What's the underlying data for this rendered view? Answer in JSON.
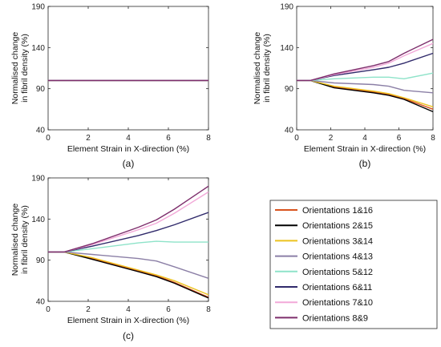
{
  "colors": {
    "1&16": "#d9531e",
    "2&15": "#000000",
    "3&14": "#ecc21f",
    "4&13": "#8b7fa6",
    "5&12": "#8ee3c9",
    "6&11": "#302a6b",
    "7&10": "#f2a9d8",
    "8&9": "#7d2e6c"
  },
  "legend": {
    "entries": [
      {
        "key": "1&16",
        "label": "Orientations 1&16"
      },
      {
        "key": "2&15",
        "label": "Orientations 2&15"
      },
      {
        "key": "3&14",
        "label": "Orientations 3&14"
      },
      {
        "key": "4&13",
        "label": "Orientations 4&13"
      },
      {
        "key": "5&12",
        "label": "Orientations 5&12"
      },
      {
        "key": "6&11",
        "label": "Orientations 6&11"
      },
      {
        "key": "7&10",
        "label": "Orientations 7&10"
      },
      {
        "key": "8&9",
        "label": "Orientations 8&9"
      }
    ]
  },
  "chart_data": [
    {
      "type": "line",
      "panel": "(a)",
      "xlabel": "Element Strain in X-direction (%)",
      "ylabel": "Normalised change in fibril density (%)",
      "ylabel_lines": [
        "Normalised change",
        "in fibril density (%)"
      ],
      "xlim": [
        0,
        8
      ],
      "ylim": [
        40,
        190
      ],
      "xticks": [
        0,
        2,
        4,
        6,
        8
      ],
      "yticks": [
        40,
        90,
        140,
        190
      ],
      "x": [
        0,
        0.8,
        2.2,
        4.5,
        5.4,
        6.3,
        8
      ],
      "series": [
        {
          "key": "1&16",
          "values": [
            100,
            100,
            100,
            100,
            100,
            100,
            100
          ]
        },
        {
          "key": "2&15",
          "values": [
            100,
            100,
            100,
            100,
            100,
            100,
            100
          ]
        },
        {
          "key": "3&14",
          "values": [
            100,
            100,
            100,
            100,
            100,
            100,
            100
          ]
        },
        {
          "key": "4&13",
          "values": [
            100,
            100,
            100,
            100,
            100,
            100,
            100
          ]
        },
        {
          "key": "5&12",
          "values": [
            100,
            100,
            100,
            100,
            100,
            100,
            100
          ]
        },
        {
          "key": "6&11",
          "values": [
            100,
            100,
            100,
            100,
            100,
            100,
            100
          ]
        },
        {
          "key": "7&10",
          "values": [
            100,
            100,
            100,
            100,
            100,
            100,
            100
          ]
        },
        {
          "key": "8&9",
          "values": [
            100,
            100,
            100,
            100,
            100,
            100,
            100
          ]
        }
      ]
    },
    {
      "type": "line",
      "panel": "(b)",
      "xlabel": "Element Strain in X-direction (%)",
      "ylabel": "Normalised change in fibril density (%)",
      "ylabel_lines": [
        "Normalised change",
        "in fibril density (%)"
      ],
      "xlim": [
        0,
        8
      ],
      "ylim": [
        40,
        190
      ],
      "xticks": [
        0,
        2,
        4,
        6,
        8
      ],
      "yticks": [
        40,
        90,
        140,
        190
      ],
      "x": [
        0,
        0.8,
        2.2,
        4.5,
        5.4,
        6.3,
        8
      ],
      "series": [
        {
          "key": "1&16",
          "values": [
            100,
            100,
            92,
            86,
            83,
            78,
            65
          ]
        },
        {
          "key": "2&15",
          "values": [
            100,
            100,
            91,
            85,
            82,
            77,
            62
          ]
        },
        {
          "key": "3&14",
          "values": [
            100,
            100,
            93,
            87,
            84,
            79,
            68
          ]
        },
        {
          "key": "4&13",
          "values": [
            100,
            100,
            97,
            95,
            93,
            88,
            85
          ]
        },
        {
          "key": "5&12",
          "values": [
            100,
            100,
            102,
            104,
            104,
            102,
            109
          ]
        },
        {
          "key": "6&11",
          "values": [
            100,
            100,
            106,
            113,
            116,
            121,
            133
          ]
        },
        {
          "key": "7&10",
          "values": [
            100,
            100,
            107,
            116,
            121,
            130,
            145
          ]
        },
        {
          "key": "8&9",
          "values": [
            100,
            100,
            108,
            118,
            123,
            133,
            150
          ]
        }
      ]
    },
    {
      "type": "line",
      "panel": "(c)",
      "xlabel": "Element Strain in X-direction (%)",
      "ylabel": "Normalised change in fibril density (%)",
      "ylabel_lines": [
        "Normalised change",
        "in fibril density (%)"
      ],
      "xlim": [
        0,
        8
      ],
      "ylim": [
        40,
        190
      ],
      "xticks": [
        0,
        2,
        4,
        6,
        8
      ],
      "yticks": [
        40,
        90,
        140,
        190
      ],
      "x": [
        0,
        0.8,
        2.2,
        4.5,
        5.4,
        6.3,
        8
      ],
      "series": [
        {
          "key": "1&16",
          "values": [
            100,
            100,
            92,
            77,
            71,
            63,
            45
          ]
        },
        {
          "key": "2&15",
          "values": [
            100,
            100,
            91,
            76,
            70,
            62,
            44
          ]
        },
        {
          "key": "3&14",
          "values": [
            100,
            100,
            93,
            78,
            72,
            65,
            48
          ]
        },
        {
          "key": "4&13",
          "values": [
            100,
            100,
            97,
            92,
            89,
            82,
            68
          ]
        },
        {
          "key": "5&12",
          "values": [
            100,
            100,
            104,
            111,
            113,
            112,
            112
          ]
        },
        {
          "key": "6&11",
          "values": [
            100,
            100,
            107,
            120,
            126,
            133,
            148
          ]
        },
        {
          "key": "7&10",
          "values": [
            100,
            100,
            109,
            127,
            135,
            147,
            173
          ]
        },
        {
          "key": "8&9",
          "values": [
            100,
            100,
            110,
            130,
            139,
            152,
            180
          ]
        }
      ]
    }
  ]
}
